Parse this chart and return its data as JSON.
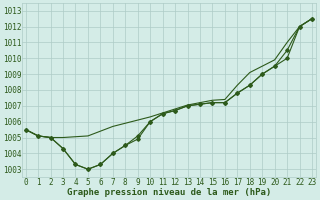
{
  "x": [
    0,
    1,
    2,
    3,
    4,
    5,
    6,
    7,
    8,
    9,
    10,
    11,
    12,
    13,
    14,
    15,
    16,
    17,
    18,
    19,
    20,
    21,
    22,
    23
  ],
  "series1": [
    1005.5,
    1005.1,
    1005.0,
    1004.3,
    1003.3,
    1003.0,
    1003.3,
    1004.0,
    1004.5,
    1005.1,
    1006.0,
    1006.5,
    1006.7,
    1007.0,
    1007.1,
    1007.2,
    1007.2,
    1007.8,
    1008.3,
    1009.0,
    1009.5,
    1010.0,
    1012.0,
    1012.5
  ],
  "series2": [
    1005.5,
    1005.1,
    1005.0,
    1004.3,
    1003.3,
    1003.0,
    1003.3,
    1004.0,
    1004.5,
    1004.9,
    1006.0,
    1006.5,
    1006.7,
    1007.0,
    1007.1,
    1007.2,
    1007.2,
    1007.8,
    1008.3,
    1009.0,
    1009.5,
    1010.5,
    1012.0,
    1012.5
  ],
  "series3": [
    1005.5,
    1005.1,
    1005.0,
    1005.0,
    1005.05,
    1005.1,
    1005.4,
    1005.7,
    1005.9,
    1006.1,
    1006.3,
    1006.55,
    1006.8,
    1007.05,
    1007.2,
    1007.35,
    1007.4,
    1008.3,
    1009.1,
    1009.5,
    1009.9,
    1011.0,
    1012.0,
    1012.5
  ],
  "line_color": "#2d5a1b",
  "bg_color": "#d4ece7",
  "grid_color": "#aeccc6",
  "xlabel": "Graphe pression niveau de la mer (hPa)",
  "ylim": [
    1002.5,
    1013.5
  ],
  "yticks": [
    1003,
    1004,
    1005,
    1006,
    1007,
    1008,
    1009,
    1010,
    1011,
    1012,
    1013
  ],
  "xticks": [
    0,
    1,
    2,
    3,
    4,
    5,
    6,
    7,
    8,
    9,
    10,
    11,
    12,
    13,
    14,
    15,
    16,
    17,
    18,
    19,
    20,
    21,
    22,
    23
  ],
  "xlabel_fontsize": 6.5,
  "tick_fontsize": 5.5
}
